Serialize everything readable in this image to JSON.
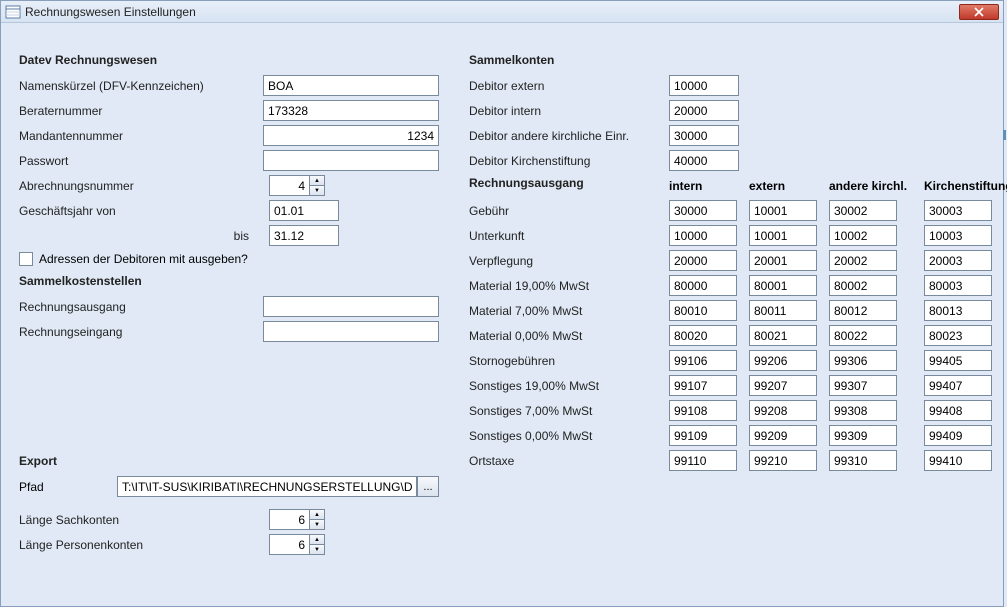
{
  "window": {
    "title": "Rechnungswesen Einstellungen"
  },
  "datev": {
    "heading": "Datev Rechnungswesen",
    "fields": {
      "namenskuerzel_label": "Namenskürzel (DFV-Kennzeichen)",
      "namenskuerzel_value": "BOA",
      "beraternummer_label": "Beraternummer",
      "beraternummer_value": "173328",
      "mandantennummer_label": "Mandantennummer",
      "mandantennummer_value": "1234",
      "passwort_label": "Passwort",
      "passwort_value": "",
      "abrechnung_label": "Abrechnungsnummer",
      "abrechnung_value": "4",
      "gj_von_label": "Geschäftsjahr von",
      "gj_von_value": "01.01",
      "gj_bis_label": "bis",
      "gj_bis_value": "31.12"
    },
    "checkbox_label": "Adressen der Debitoren mit ausgeben?"
  },
  "sammelkostenstellen": {
    "heading": "Sammelkostenstellen",
    "ausgang_label": "Rechnungsausgang",
    "ausgang_value": "",
    "eingang_label": "Rechnungseingang",
    "eingang_value": ""
  },
  "sammelkonten": {
    "heading": "Sammelkonten",
    "debitor_extern_label": "Debitor extern",
    "debitor_extern_value": "10000",
    "debitor_intern_label": "Debitor intern",
    "debitor_intern_value": "20000",
    "debitor_andere_label": "Debitor andere kirchliche Einr.",
    "debitor_andere_value": "30000",
    "debitor_kirchen_label": "Debitor Kirchenstiftung",
    "debitor_kirchen_value": "40000"
  },
  "rechnungsausgang": {
    "heading": "Rechnungsausgang",
    "cols": [
      "intern",
      "extern",
      "andere kirchl.",
      "Kirchenstiftung"
    ],
    "rows": [
      {
        "label": "Gebühr",
        "vals": [
          "30000",
          "10001",
          "30002",
          "30003"
        ]
      },
      {
        "label": "Unterkunft",
        "vals": [
          "10000",
          "10001",
          "10002",
          "10003"
        ]
      },
      {
        "label": "Verpflegung",
        "vals": [
          "20000",
          "20001",
          "20002",
          "20003"
        ]
      },
      {
        "label": "Material 19,00% MwSt",
        "vals": [
          "80000",
          "80001",
          "80002",
          "80003"
        ]
      },
      {
        "label": "Material 7,00% MwSt",
        "vals": [
          "80010",
          "80011",
          "80012",
          "80013"
        ]
      },
      {
        "label": "Material 0,00% MwSt",
        "vals": [
          "80020",
          "80021",
          "80022",
          "80023"
        ]
      },
      {
        "label": "Stornogebühren",
        "vals": [
          "99106",
          "99206",
          "99306",
          "99405"
        ]
      },
      {
        "label": "Sonstiges 19,00% MwSt",
        "vals": [
          "99107",
          "99207",
          "99307",
          "99407"
        ]
      },
      {
        "label": "Sonstiges 7,00% MwSt",
        "vals": [
          "99108",
          "99208",
          "99308",
          "99408"
        ]
      },
      {
        "label": "Sonstiges 0,00% MwSt",
        "vals": [
          "99109",
          "99209",
          "99309",
          "99409"
        ]
      },
      {
        "label": "Ortstaxe",
        "vals": [
          "99110",
          "99210",
          "99310",
          "99410"
        ]
      }
    ]
  },
  "export": {
    "heading": "Export",
    "pfad_label": "Pfad",
    "pfad_value": "T:\\IT\\IT-SUS\\KIRIBATI\\RECHNUNGSERSTELLUNG\\DATE",
    "browse": "...",
    "laenge_sach_label": "Länge Sachkonten",
    "laenge_sach_value": "6",
    "laenge_pers_label": "Länge Personenkonten",
    "laenge_pers_value": "6"
  }
}
